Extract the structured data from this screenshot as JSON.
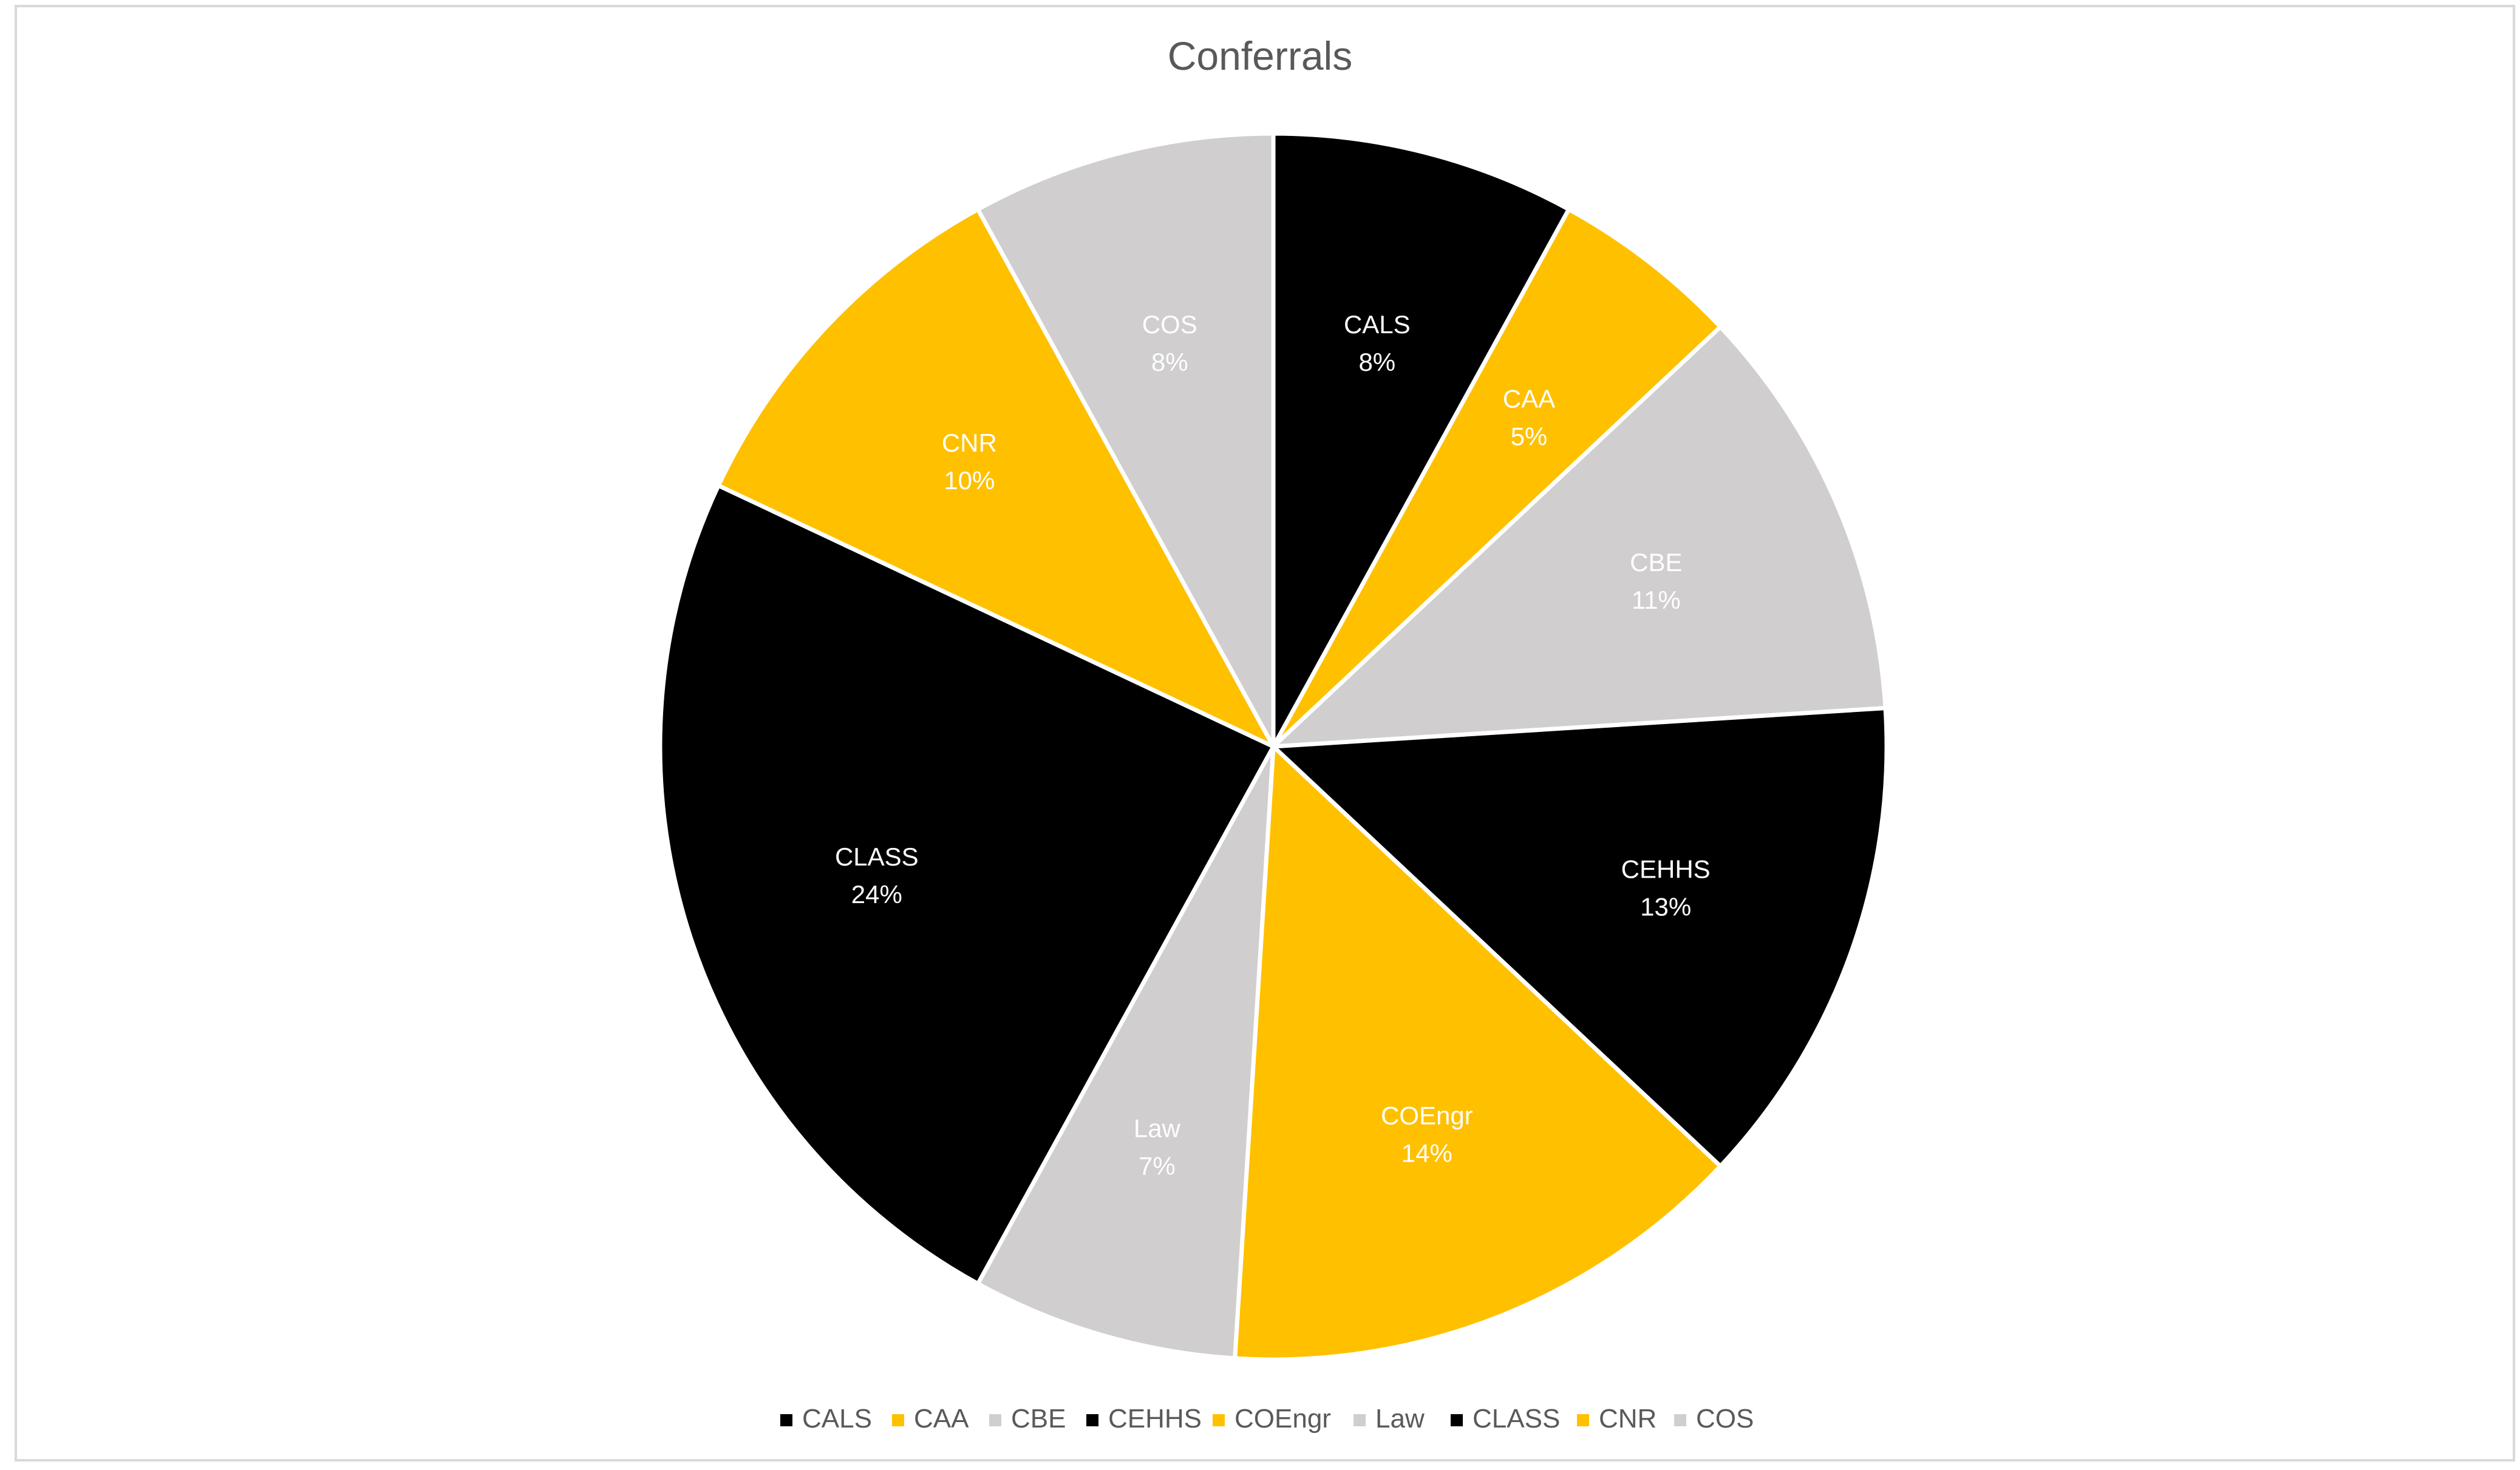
{
  "chart_data": {
    "type": "pie",
    "title": "Conferrals",
    "slices": [
      {
        "label": "CALS",
        "value": 8,
        "value_label": "8%",
        "color": "#000000",
        "text_color": "#ffffff"
      },
      {
        "label": "CAA",
        "value": 5,
        "value_label": "5%",
        "color": "#ffc000",
        "text_color": "#ffffff"
      },
      {
        "label": "CBE",
        "value": 11,
        "value_label": "11%",
        "color": "#d0cece",
        "text_color": "#ffffff"
      },
      {
        "label": "CEHHS",
        "value": 13,
        "value_label": "13%",
        "color": "#000000",
        "text_color": "#ffffff"
      },
      {
        "label": "COEngr",
        "value": 14,
        "value_label": "14%",
        "color": "#ffc000",
        "text_color": "#ffffff"
      },
      {
        "label": "Law",
        "value": 7,
        "value_label": "7%",
        "color": "#d0cece",
        "text_color": "#ffffff"
      },
      {
        "label": "CLASS",
        "value": 24,
        "value_label": "24%",
        "color": "#000000",
        "text_color": "#ffffff"
      },
      {
        "label": "CNR",
        "value": 10,
        "value_label": "10%",
        "color": "#ffc000",
        "text_color": "#ffffff"
      },
      {
        "label": "COS",
        "value": 8,
        "value_label": "8%",
        "color": "#d0cece",
        "text_color": "#ffffff"
      }
    ],
    "legend_position": "bottom"
  }
}
